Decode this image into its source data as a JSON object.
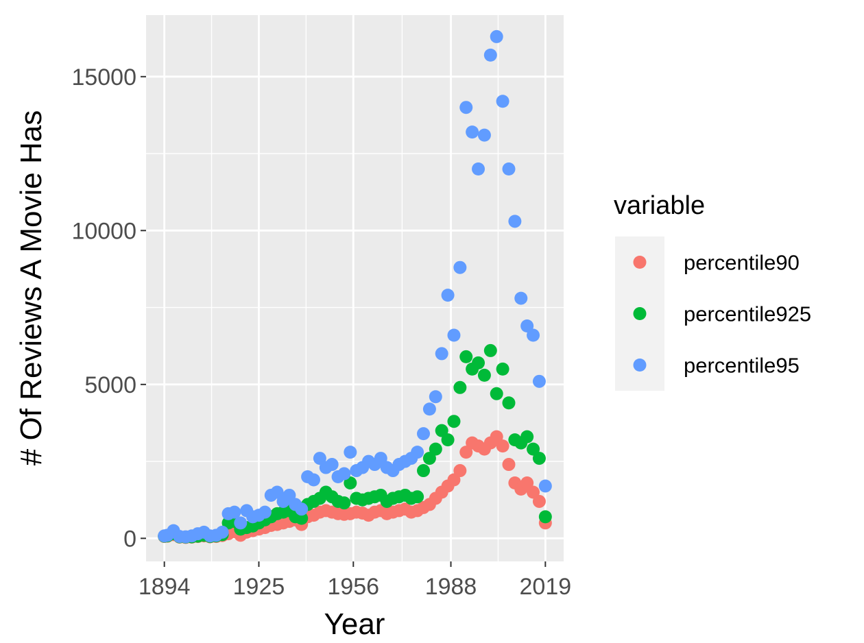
{
  "chart_data": {
    "type": "scatter",
    "xlabel": "Year",
    "ylabel": "# Of Reviews A Movie Has",
    "xlim": [
      1888,
      2025
    ],
    "ylim": [
      -750,
      17000
    ],
    "x_ticks": [
      1894,
      1925,
      1956,
      1988,
      2019
    ],
    "y_ticks": [
      0,
      5000,
      10000,
      15000
    ],
    "grid": true,
    "legend": {
      "title": "variable",
      "position": "right",
      "entries": [
        "percentile90",
        "percentile925",
        "percentile95"
      ]
    },
    "series": [
      {
        "name": "percentile90",
        "color": "#F8766D",
        "points": [
          [
            1894,
            60
          ],
          [
            1895,
            70
          ],
          [
            1897,
            120
          ],
          [
            1899,
            40
          ],
          [
            1901,
            30
          ],
          [
            1903,
            40
          ],
          [
            1905,
            60
          ],
          [
            1907,
            80
          ],
          [
            1909,
            50
          ],
          [
            1911,
            60
          ],
          [
            1913,
            90
          ],
          [
            1915,
            150
          ],
          [
            1917,
            220
          ],
          [
            1919,
            100
          ],
          [
            1921,
            200
          ],
          [
            1923,
            250
          ],
          [
            1925,
            300
          ],
          [
            1927,
            350
          ],
          [
            1929,
            420
          ],
          [
            1931,
            450
          ],
          [
            1933,
            500
          ],
          [
            1935,
            550
          ],
          [
            1937,
            600
          ],
          [
            1939,
            450
          ],
          [
            1941,
            700
          ],
          [
            1943,
            750
          ],
          [
            1945,
            850
          ],
          [
            1947,
            900
          ],
          [
            1949,
            850
          ],
          [
            1951,
            800
          ],
          [
            1953,
            780
          ],
          [
            1955,
            800
          ],
          [
            1957,
            850
          ],
          [
            1959,
            820
          ],
          [
            1961,
            750
          ],
          [
            1963,
            850
          ],
          [
            1965,
            900
          ],
          [
            1967,
            800
          ],
          [
            1969,
            850
          ],
          [
            1971,
            900
          ],
          [
            1973,
            950
          ],
          [
            1975,
            850
          ],
          [
            1977,
            900
          ],
          [
            1979,
            1000
          ],
          [
            1981,
            1100
          ],
          [
            1983,
            1300
          ],
          [
            1985,
            1500
          ],
          [
            1987,
            1700
          ],
          [
            1989,
            1900
          ],
          [
            1991,
            2200
          ],
          [
            1993,
            2800
          ],
          [
            1995,
            3100
          ],
          [
            1997,
            3000
          ],
          [
            1999,
            2900
          ],
          [
            2001,
            3100
          ],
          [
            2003,
            3300
          ],
          [
            2005,
            3000
          ],
          [
            2007,
            2400
          ],
          [
            2009,
            1800
          ],
          [
            2011,
            1600
          ],
          [
            2013,
            1800
          ],
          [
            2015,
            1500
          ],
          [
            2017,
            1200
          ],
          [
            2019,
            500
          ]
        ]
      },
      {
        "name": "percentile925",
        "color": "#00BA38",
        "points": [
          [
            1894,
            70
          ],
          [
            1895,
            80
          ],
          [
            1897,
            150
          ],
          [
            1899,
            50
          ],
          [
            1901,
            40
          ],
          [
            1903,
            50
          ],
          [
            1905,
            70
          ],
          [
            1907,
            100
          ],
          [
            1909,
            60
          ],
          [
            1911,
            80
          ],
          [
            1913,
            120
          ],
          [
            1915,
            500
          ],
          [
            1917,
            550
          ],
          [
            1919,
            300
          ],
          [
            1921,
            350
          ],
          [
            1923,
            400
          ],
          [
            1925,
            500
          ],
          [
            1927,
            600
          ],
          [
            1929,
            700
          ],
          [
            1931,
            800
          ],
          [
            1933,
            850
          ],
          [
            1935,
            900
          ],
          [
            1937,
            700
          ],
          [
            1939,
            650
          ],
          [
            1941,
            1100
          ],
          [
            1943,
            1200
          ],
          [
            1945,
            1300
          ],
          [
            1947,
            1500
          ],
          [
            1949,
            1350
          ],
          [
            1951,
            1200
          ],
          [
            1953,
            1150
          ],
          [
            1955,
            1800
          ],
          [
            1957,
            1300
          ],
          [
            1959,
            1250
          ],
          [
            1961,
            1300
          ],
          [
            1963,
            1350
          ],
          [
            1965,
            1400
          ],
          [
            1967,
            1200
          ],
          [
            1969,
            1300
          ],
          [
            1971,
            1350
          ],
          [
            1973,
            1400
          ],
          [
            1975,
            1300
          ],
          [
            1977,
            1350
          ],
          [
            1979,
            2200
          ],
          [
            1981,
            2600
          ],
          [
            1983,
            2900
          ],
          [
            1985,
            3500
          ],
          [
            1987,
            3200
          ],
          [
            1989,
            3800
          ],
          [
            1991,
            4900
          ],
          [
            1993,
            5900
          ],
          [
            1995,
            5500
          ],
          [
            1997,
            5700
          ],
          [
            1999,
            5300
          ],
          [
            2001,
            6100
          ],
          [
            2003,
            4700
          ],
          [
            2005,
            5500
          ],
          [
            2007,
            4400
          ],
          [
            2009,
            3200
          ],
          [
            2011,
            3100
          ],
          [
            2013,
            3300
          ],
          [
            2015,
            2900
          ],
          [
            2017,
            2600
          ],
          [
            2019,
            700
          ]
        ]
      },
      {
        "name": "percentile95",
        "color": "#619CFF",
        "points": [
          [
            1894,
            80
          ],
          [
            1895,
            100
          ],
          [
            1897,
            250
          ],
          [
            1899,
            60
          ],
          [
            1901,
            50
          ],
          [
            1903,
            80
          ],
          [
            1905,
            150
          ],
          [
            1907,
            200
          ],
          [
            1909,
            80
          ],
          [
            1911,
            100
          ],
          [
            1913,
            200
          ],
          [
            1915,
            800
          ],
          [
            1917,
            850
          ],
          [
            1919,
            500
          ],
          [
            1921,
            900
          ],
          [
            1923,
            700
          ],
          [
            1925,
            750
          ],
          [
            1927,
            850
          ],
          [
            1929,
            1400
          ],
          [
            1931,
            1500
          ],
          [
            1933,
            1200
          ],
          [
            1935,
            1400
          ],
          [
            1937,
            1100
          ],
          [
            1939,
            950
          ],
          [
            1941,
            2000
          ],
          [
            1943,
            1900
          ],
          [
            1945,
            2600
          ],
          [
            1947,
            2300
          ],
          [
            1949,
            2400
          ],
          [
            1951,
            2000
          ],
          [
            1953,
            2100
          ],
          [
            1955,
            2800
          ],
          [
            1957,
            2200
          ],
          [
            1959,
            2300
          ],
          [
            1961,
            2500
          ],
          [
            1963,
            2400
          ],
          [
            1965,
            2600
          ],
          [
            1967,
            2300
          ],
          [
            1969,
            2200
          ],
          [
            1971,
            2400
          ],
          [
            1973,
            2500
          ],
          [
            1975,
            2600
          ],
          [
            1977,
            2800
          ],
          [
            1979,
            3400
          ],
          [
            1981,
            4200
          ],
          [
            1983,
            4600
          ],
          [
            1985,
            6000
          ],
          [
            1987,
            7900
          ],
          [
            1989,
            6600
          ],
          [
            1991,
            8800
          ],
          [
            1993,
            14000
          ],
          [
            1995,
            13200
          ],
          [
            1997,
            12000
          ],
          [
            1999,
            13100
          ],
          [
            2001,
            15700
          ],
          [
            2003,
            16300
          ],
          [
            2005,
            14200
          ],
          [
            2007,
            12000
          ],
          [
            2009,
            10300
          ],
          [
            2011,
            7800
          ],
          [
            2013,
            6900
          ],
          [
            2015,
            6600
          ],
          [
            2017,
            5100
          ],
          [
            2019,
            1700
          ]
        ]
      }
    ]
  }
}
